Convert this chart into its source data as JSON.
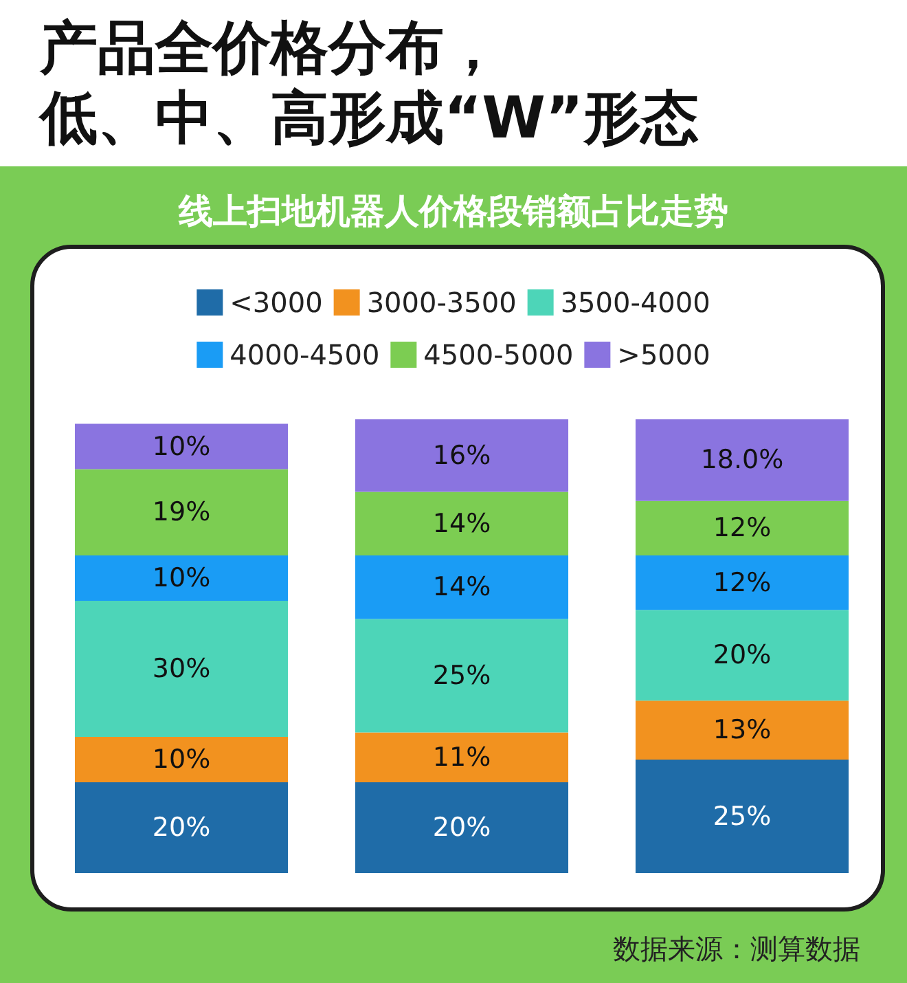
{
  "chart_data": {
    "type": "bar",
    "title": "产品全价格分布，低、中、高形成“W”形态",
    "subtitle": "线上扫地机器人价格段销额占比走势",
    "annotations": [
      "数据来源：测算数据"
    ],
    "categories": [
      null,
      null,
      null
    ],
    "stacked": true,
    "legend": "top",
    "series": [
      {
        "name": "<3000",
        "color": "#1f6ca8",
        "values": [
          20,
          20,
          25
        ],
        "value_labels": [
          "20%",
          "20%",
          "25%"
        ]
      },
      {
        "name": "3000-3500",
        "color": "#f2921f",
        "values": [
          10,
          11,
          13
        ],
        "value_labels": [
          "10%",
          "11%",
          "13%"
        ]
      },
      {
        "name": "3500-4000",
        "color": "#4dd5b8",
        "values": [
          30,
          25,
          20
        ],
        "value_labels": [
          "30%",
          "25%",
          "20%"
        ]
      },
      {
        "name": "4000-4500",
        "color": "#1a9cf5",
        "values": [
          10,
          14,
          12
        ],
        "value_labels": [
          "10%",
          "14%",
          "12%"
        ]
      },
      {
        "name": "4500-5000",
        "color": "#7ccd52",
        "values": [
          19,
          14,
          12
        ],
        "value_labels": [
          "19%",
          "14%",
          "12%"
        ]
      },
      {
        "name": ">5000",
        "color": "#8a74e0",
        "values": [
          10,
          16,
          18.0
        ],
        "value_labels": [
          "10%",
          "16%",
          "18.0%"
        ]
      }
    ]
  }
}
